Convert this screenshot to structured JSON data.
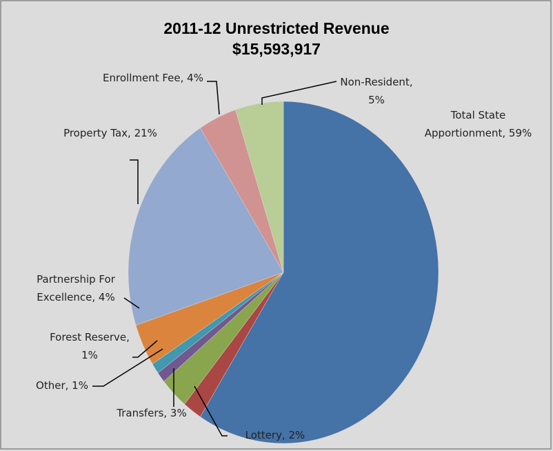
{
  "chart_data": {
    "type": "pie",
    "title": "2011-12 Unrestricted Revenue",
    "subtitle": "$15,593,917",
    "values": [
      59,
      2,
      3,
      1,
      1,
      4,
      21,
      4,
      5
    ],
    "value_labels": [
      "Total State Apportionment, 59%",
      "Lottery, 2%",
      "Transfers, 3%",
      "Other, 1%",
      "Forest Reserve, 1%",
      "Partnership For Excellence, 4%",
      "Property Tax, 21%",
      "Enrollment Fee, 4%",
      "Non-Resident, 5%"
    ],
    "colors": [
      "#4572a7",
      "#aa4643",
      "#89a54e",
      "#71588f",
      "#4198af",
      "#db843d",
      "#93a9cf",
      "#d19392",
      "#b9cd96"
    ]
  }
}
